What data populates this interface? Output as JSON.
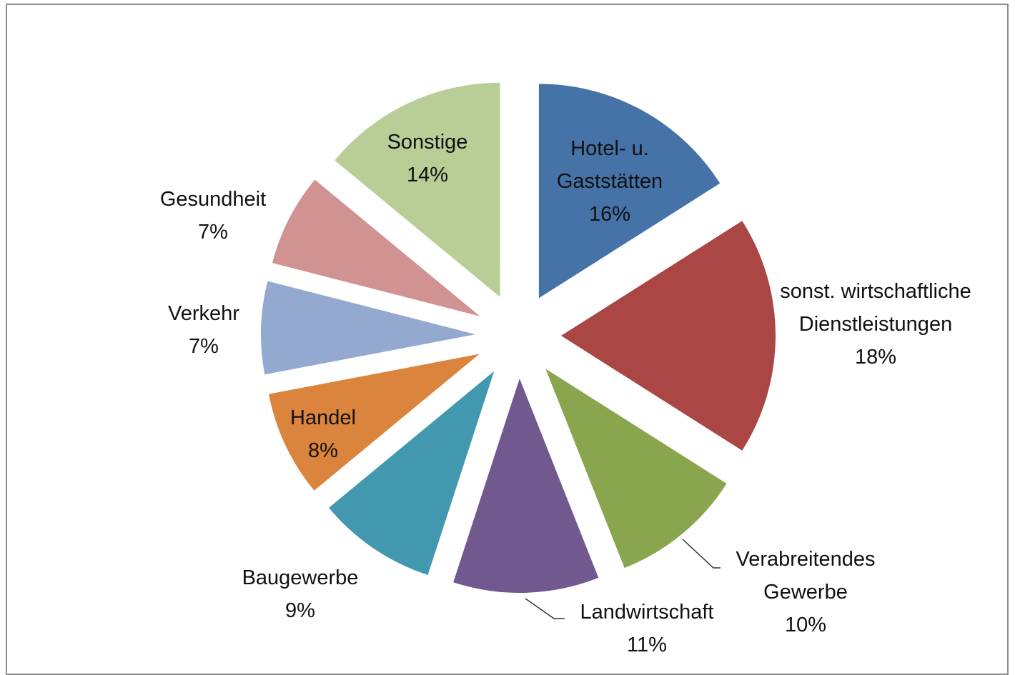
{
  "chart_data": {
    "type": "pie",
    "categories": [
      "Hotel- u. Gaststätten",
      "sonst. wirtschaftliche Dienstleistungen",
      "Verabreitendes Gewerbe",
      "Landwirtschaft",
      "Baugewerbe",
      "Handel",
      "Verkehr",
      "Gesundheit",
      "Sonstige"
    ],
    "values": [
      16,
      18,
      10,
      11,
      9,
      8,
      7,
      7,
      14
    ],
    "value_labels": [
      "16%",
      "18%",
      "10%",
      "11%",
      "9%",
      "8%",
      "7%",
      "7%",
      "14%"
    ],
    "colors": [
      "#4572a7",
      "#aa4643",
      "#89a54e",
      "#71588f",
      "#4198af",
      "#db843d",
      "#93a9cf",
      "#d19392",
      "#b9cd96"
    ]
  }
}
